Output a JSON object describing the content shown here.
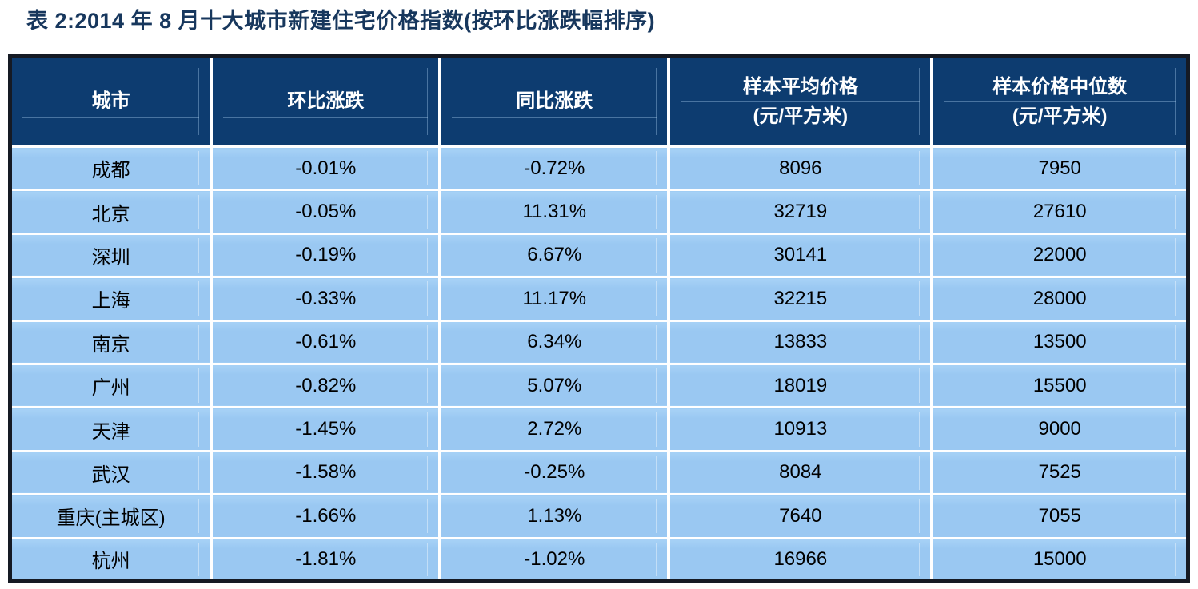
{
  "title": "表 2:2014 年 8 月十大城市新建住宅价格指数(按环比涨跌幅排序)",
  "colors": {
    "title": "#17375d",
    "header_bg": "#0d3c70",
    "header_text": "#ffffff",
    "cell_bg": "#9ac8f2",
    "cell_text": "#000000",
    "frame": "#151a24",
    "separator": "#ffffff"
  },
  "table": {
    "columns": [
      {
        "id": "city",
        "label": "城市"
      },
      {
        "id": "mom-change",
        "label": "环比涨跌"
      },
      {
        "id": "yoy-change",
        "label": "同比涨跌"
      },
      {
        "id": "sample-avg-price",
        "label": "样本平均价格",
        "sub": "(元/平方米)"
      },
      {
        "id": "sample-median-price",
        "label": "样本价格中位数",
        "sub": "(元/平方米)"
      }
    ],
    "rows": [
      [
        "成都",
        "-0.01%",
        "-0.72%",
        "8096",
        "7950"
      ],
      [
        "北京",
        "-0.05%",
        "11.31%",
        "32719",
        "27610"
      ],
      [
        "深圳",
        "-0.19%",
        "6.67%",
        "30141",
        "22000"
      ],
      [
        "上海",
        "-0.33%",
        "11.17%",
        "32215",
        "28000"
      ],
      [
        "南京",
        "-0.61%",
        "6.34%",
        "13833",
        "13500"
      ],
      [
        "广州",
        "-0.82%",
        "5.07%",
        "18019",
        "15500"
      ],
      [
        "天津",
        "-1.45%",
        "2.72%",
        "10913",
        "9000"
      ],
      [
        "武汉",
        "-1.58%",
        "-0.25%",
        "8084",
        "7525"
      ],
      [
        "重庆(主城区)",
        "-1.66%",
        "1.13%",
        "7640",
        "7055"
      ],
      [
        "杭州",
        "-1.81%",
        "-1.02%",
        "16966",
        "15000"
      ]
    ]
  },
  "chart_data": {
    "type": "table",
    "title": "表 2:2014 年 8 月十大城市新建住宅价格指数(按环比涨跌幅排序)",
    "columns": [
      "城市",
      "环比涨跌",
      "同比涨跌",
      "样本平均价格(元/平方米)",
      "样本价格中位数(元/平方米)"
    ],
    "rows": [
      [
        "成都",
        "-0.01%",
        "-0.72%",
        8096,
        7950
      ],
      [
        "北京",
        "-0.05%",
        "11.31%",
        32719,
        27610
      ],
      [
        "深圳",
        "-0.19%",
        "6.67%",
        30141,
        22000
      ],
      [
        "上海",
        "-0.33%",
        "11.17%",
        32215,
        28000
      ],
      [
        "南京",
        "-0.61%",
        "6.34%",
        13833,
        13500
      ],
      [
        "广州",
        "-0.82%",
        "5.07%",
        18019,
        15500
      ],
      [
        "天津",
        "-1.45%",
        "2.72%",
        10913,
        9000
      ],
      [
        "武汉",
        "-1.58%",
        "-0.25%",
        8084,
        7525
      ],
      [
        "重庆(主城区)",
        "-1.66%",
        "1.13%",
        7640,
        7055
      ],
      [
        "杭州",
        "-1.81%",
        "-1.02%",
        16966,
        15000
      ]
    ]
  }
}
